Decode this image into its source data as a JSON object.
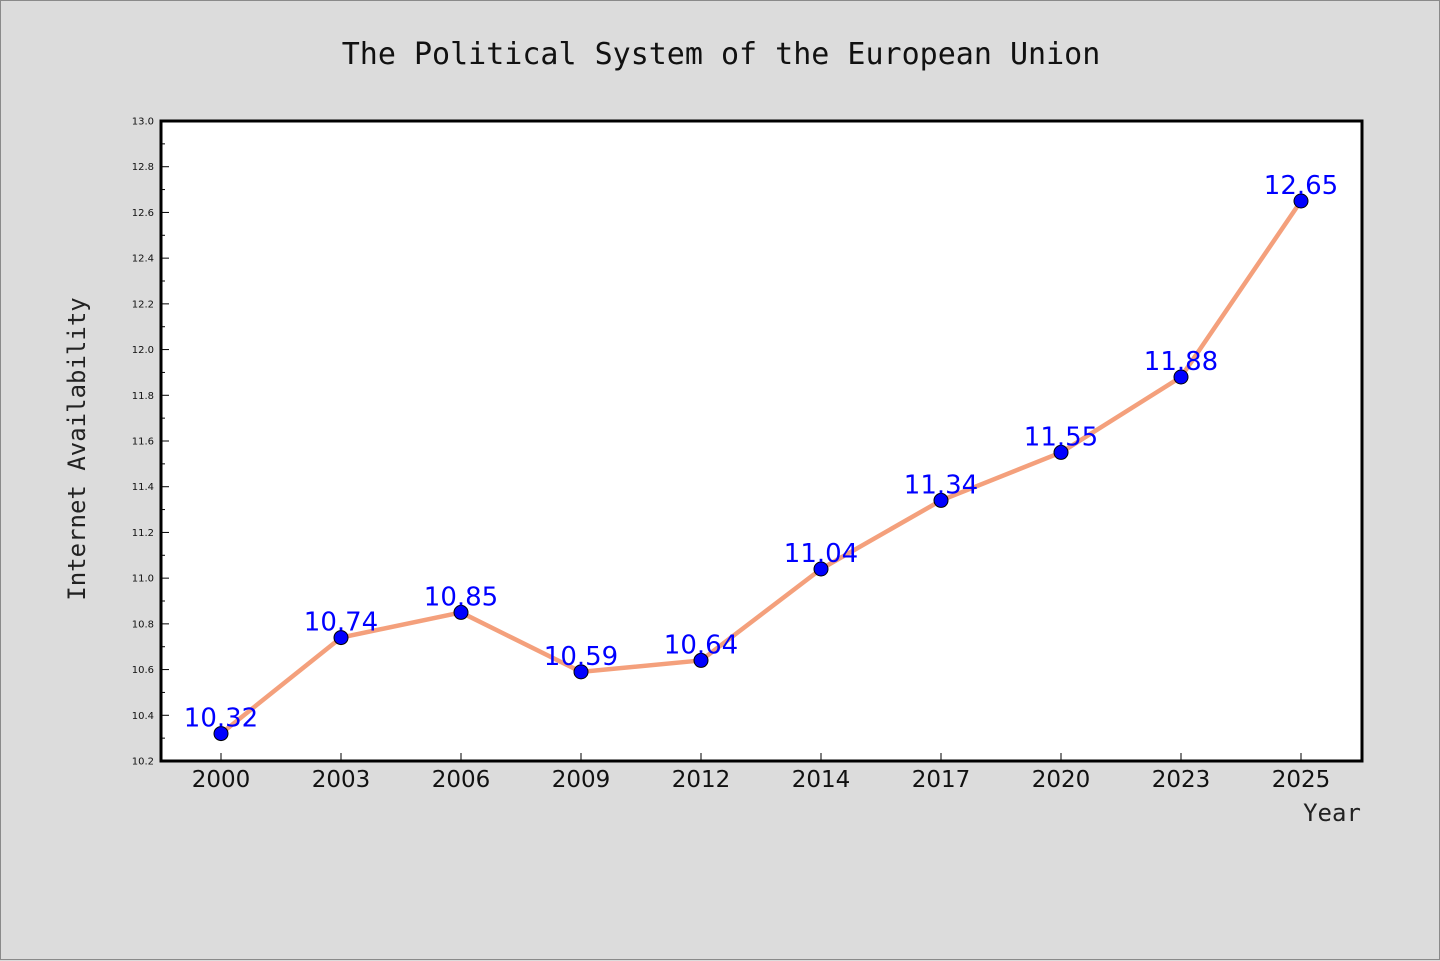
{
  "chart_data": {
    "type": "line",
    "title": "The Political System of the European Union",
    "xlabel": "Year",
    "ylabel": "Internet Availability",
    "categories": [
      "2000",
      "2003",
      "2006",
      "2009",
      "2012",
      "2014",
      "2017",
      "2020",
      "2023",
      "2025"
    ],
    "series": [
      {
        "values": [
          10.32,
          10.74,
          10.85,
          10.59,
          10.64,
          11.04,
          11.34,
          11.55,
          11.88,
          12.65
        ],
        "data_labels": [
          "10.32",
          "10.74",
          "10.85",
          "10.59",
          "10.64",
          "11.04",
          "11.34",
          "11.55",
          "11.88",
          "12.65"
        ],
        "line_color": "#f4a07c",
        "marker_color": "#0000ff"
      }
    ],
    "ylim": [
      10.2,
      13.0
    ],
    "yticks": [
      "10.2",
      "10.4",
      "10.6",
      "10.8",
      "11.0",
      "11.2",
      "11.4",
      "11.6",
      "11.8",
      "12.0",
      "12.2",
      "12.4",
      "12.6",
      "12.8",
      "13.0"
    ],
    "grid": false,
    "legend": "none",
    "colors": {
      "background": "#dcdcdc",
      "plot_background": "#ffffff",
      "line": "#f4a07c",
      "marker": "#0000ff",
      "data_label": "#0000ff"
    }
  }
}
